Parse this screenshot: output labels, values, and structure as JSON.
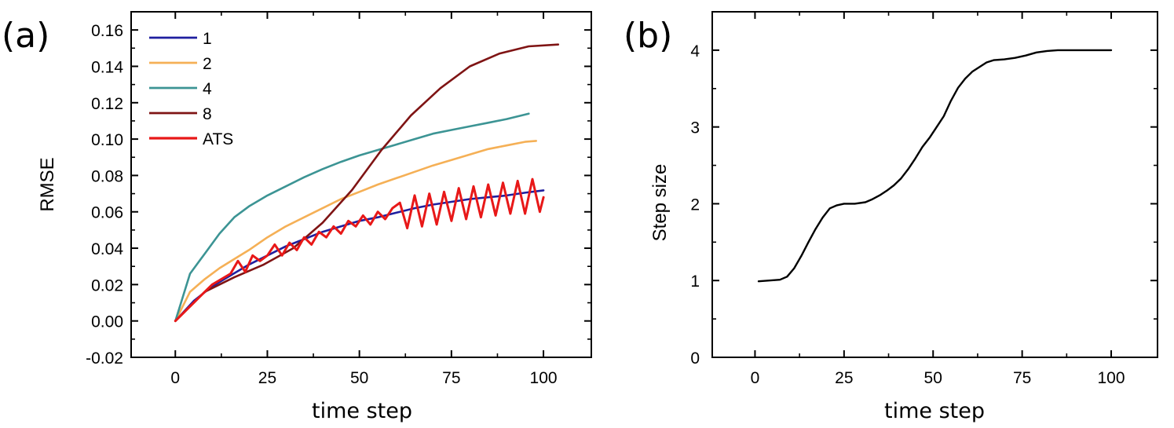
{
  "chart_data": [
    {
      "type": "line",
      "panel_label": "(a)",
      "title": "",
      "xlabel": "time step",
      "ylabel": "RMSE",
      "xlim": [
        -12,
        113
      ],
      "ylim": [
        -0.02,
        0.17
      ],
      "xticks": [
        0,
        25,
        50,
        75,
        100
      ],
      "yticks": [
        -0.02,
        0.0,
        0.02,
        0.04,
        0.06,
        0.08,
        0.1,
        0.12,
        0.14,
        0.16
      ],
      "xtick_labels": [
        "0",
        "25",
        "50",
        "75",
        "100"
      ],
      "ytick_labels": [
        "-0.02",
        "0.00",
        "0.02",
        "0.04",
        "0.06",
        "0.08",
        "0.10",
        "0.12",
        "0.14",
        "0.16"
      ],
      "legend_position": "top-left",
      "series": [
        {
          "name": "1",
          "color": "#1f1f9f",
          "x": [
            0,
            5,
            10,
            15,
            20,
            25,
            30,
            35,
            40,
            45,
            50,
            55,
            60,
            65,
            70,
            75,
            80,
            85,
            90,
            95,
            100
          ],
          "y": [
            0.0,
            0.011,
            0.019,
            0.025,
            0.031,
            0.036,
            0.041,
            0.045,
            0.049,
            0.052,
            0.055,
            0.057,
            0.0595,
            0.062,
            0.064,
            0.0655,
            0.067,
            0.068,
            0.069,
            0.0705,
            0.0718
          ]
        },
        {
          "name": "2",
          "color": "#f5b056",
          "x": [
            0,
            4,
            8,
            12,
            16,
            20,
            25,
            30,
            35,
            40,
            45,
            50,
            55,
            60,
            65,
            70,
            75,
            80,
            85,
            90,
            95,
            98
          ],
          "y": [
            0.0,
            0.016,
            0.023,
            0.029,
            0.034,
            0.039,
            0.046,
            0.052,
            0.057,
            0.062,
            0.067,
            0.071,
            0.075,
            0.0785,
            0.082,
            0.0855,
            0.0885,
            0.0915,
            0.0945,
            0.0965,
            0.0985,
            0.099
          ]
        },
        {
          "name": "4",
          "color": "#3c9494",
          "x": [
            0,
            4,
            8,
            12,
            16,
            20,
            25,
            30,
            35,
            40,
            45,
            50,
            55,
            60,
            65,
            70,
            75,
            80,
            85,
            90,
            96
          ],
          "y": [
            0.0,
            0.026,
            0.037,
            0.048,
            0.057,
            0.063,
            0.069,
            0.074,
            0.079,
            0.0835,
            0.0875,
            0.091,
            0.094,
            0.097,
            0.1,
            0.103,
            0.105,
            0.107,
            0.109,
            0.111,
            0.114
          ]
        },
        {
          "name": "8",
          "color": "#7f1414",
          "x": [
            0,
            8,
            16,
            24,
            32,
            40,
            48,
            56,
            64,
            72,
            80,
            88,
            96,
            104
          ],
          "y": [
            0.0,
            0.016,
            0.024,
            0.031,
            0.04,
            0.054,
            0.072,
            0.094,
            0.113,
            0.128,
            0.14,
            0.147,
            0.151,
            0.152
          ]
        },
        {
          "name": "ATS",
          "color": "#e81818",
          "x": [
            0,
            5,
            10,
            15,
            17,
            19,
            21,
            23,
            25,
            27,
            29,
            31,
            33,
            35,
            37,
            39,
            41,
            43,
            45,
            47,
            49,
            51,
            53,
            55,
            57,
            59,
            61,
            63,
            65,
            67,
            69,
            71,
            73,
            75,
            77,
            79,
            81,
            83,
            85,
            87,
            89,
            91,
            93,
            95,
            97,
            99,
            100
          ],
          "y": [
            0.0,
            0.01,
            0.02,
            0.026,
            0.033,
            0.027,
            0.036,
            0.033,
            0.036,
            0.042,
            0.036,
            0.043,
            0.039,
            0.046,
            0.042,
            0.049,
            0.046,
            0.052,
            0.048,
            0.055,
            0.052,
            0.058,
            0.053,
            0.06,
            0.056,
            0.062,
            0.065,
            0.051,
            0.069,
            0.052,
            0.07,
            0.053,
            0.071,
            0.055,
            0.073,
            0.056,
            0.074,
            0.057,
            0.075,
            0.058,
            0.076,
            0.059,
            0.077,
            0.059,
            0.078,
            0.06,
            0.068
          ]
        }
      ]
    },
    {
      "type": "line",
      "panel_label": "(b)",
      "title": "",
      "xlabel": "time step",
      "ylabel": "Step size",
      "xlim": [
        -12,
        113
      ],
      "ylim": [
        0,
        4.5
      ],
      "xticks": [
        0,
        25,
        50,
        75,
        100
      ],
      "yticks": [
        0,
        1,
        2,
        3,
        4
      ],
      "xtick_labels": [
        "0",
        "25",
        "50",
        "75",
        "100"
      ],
      "ytick_labels": [
        "0",
        "1",
        "2",
        "3",
        "4"
      ],
      "series": [
        {
          "name": "Step size",
          "color": "#000000",
          "x": [
            1,
            4,
            7,
            9,
            11,
            13,
            15,
            17,
            19,
            21,
            23,
            25,
            28,
            31,
            33,
            35,
            37,
            39,
            41,
            43,
            45,
            47,
            49,
            51,
            53,
            55,
            57,
            59,
            61,
            63,
            65,
            67,
            70,
            73,
            76,
            79,
            82,
            85,
            88,
            91,
            95,
            100
          ],
          "y": [
            0.99,
            1.0,
            1.01,
            1.05,
            1.16,
            1.32,
            1.5,
            1.67,
            1.82,
            1.94,
            1.98,
            2.0,
            2.0,
            2.02,
            2.06,
            2.11,
            2.17,
            2.24,
            2.33,
            2.45,
            2.59,
            2.74,
            2.86,
            3.0,
            3.14,
            3.34,
            3.51,
            3.63,
            3.72,
            3.78,
            3.84,
            3.87,
            3.88,
            3.9,
            3.93,
            3.97,
            3.99,
            4.0,
            4.0,
            4.0,
            4.0,
            4.0
          ]
        }
      ]
    }
  ]
}
